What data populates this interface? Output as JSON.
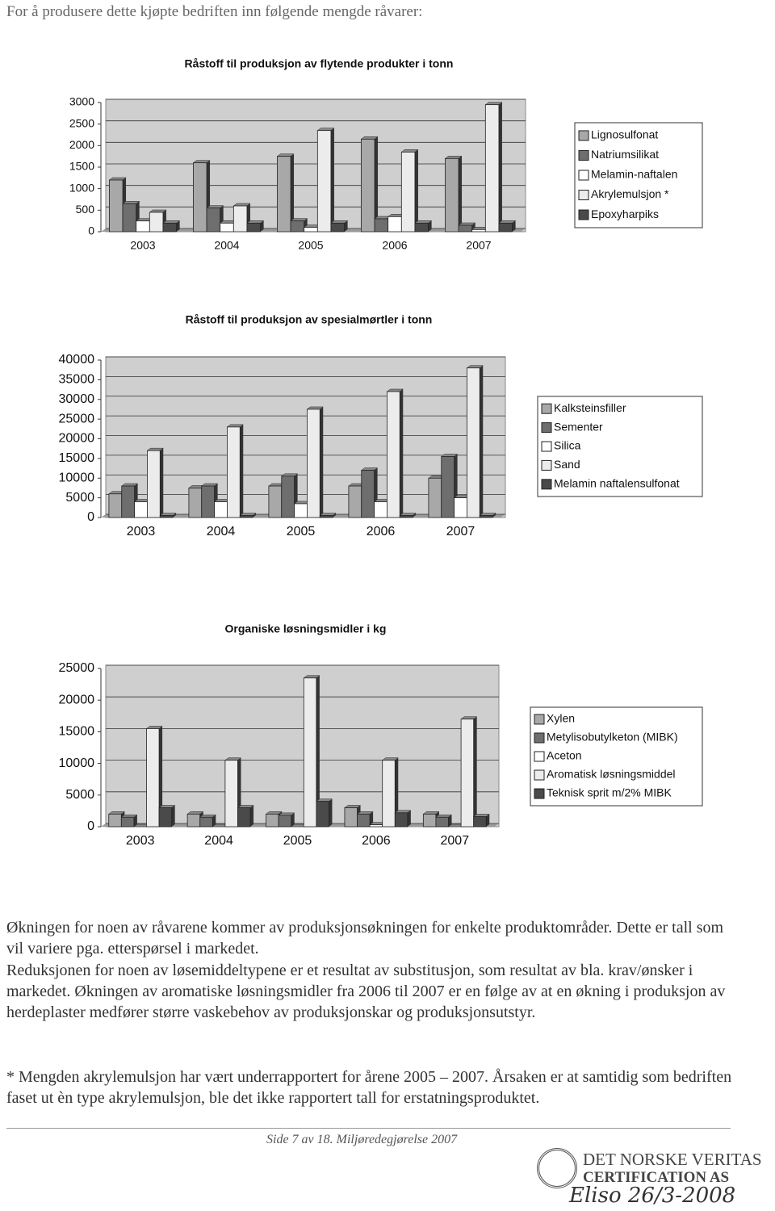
{
  "intro": "For å produsere dette kjøpte bedriften inn følgende mengde råvarer:",
  "chart_data": [
    {
      "type": "bar",
      "title": "Råstoff til produksjon av flytende produkter i tonn",
      "categories": [
        "2003",
        "2004",
        "2005",
        "2006",
        "2007"
      ],
      "series": [
        {
          "name": "Lignosulfonat",
          "color": "#a8a8a8",
          "values": [
            1200,
            1600,
            1750,
            2150,
            1700
          ]
        },
        {
          "name": "Natriumsilikat",
          "color": "#6e6e6e",
          "values": [
            650,
            550,
            250,
            300,
            150
          ]
        },
        {
          "name": "Melamin-naftalen",
          "color": "#ffffff",
          "values": [
            250,
            200,
            100,
            350,
            50
          ]
        },
        {
          "name": "Akrylemulsjon *",
          "color": "#ececec",
          "values": [
            450,
            600,
            2350,
            1850,
            2950
          ]
        },
        {
          "name": "Epoxyharpiks",
          "color": "#4a4a4a",
          "values": [
            200,
            200,
            200,
            200,
            200
          ]
        }
      ],
      "ylim": [
        0,
        3000
      ],
      "yticks": [
        0,
        500,
        1000,
        1500,
        2000,
        2500,
        3000
      ],
      "grid": true,
      "legend": "right"
    },
    {
      "type": "bar",
      "title": "Råstoff til produksjon av spesialmørtler i tonn",
      "categories": [
        "2003",
        "2004",
        "2005",
        "2006",
        "2007"
      ],
      "series": [
        {
          "name": "Kalksteinsfiller",
          "color": "#a8a8a8",
          "values": [
            6000,
            7500,
            8000,
            8000,
            10000
          ]
        },
        {
          "name": "Sementer",
          "color": "#6e6e6e",
          "values": [
            8000,
            8000,
            10500,
            12000,
            15500
          ]
        },
        {
          "name": "Silica",
          "color": "#ffffff",
          "values": [
            4000,
            4000,
            3500,
            4000,
            5000
          ]
        },
        {
          "name": "Sand",
          "color": "#ececec",
          "values": [
            17000,
            23000,
            27500,
            32000,
            38000
          ]
        },
        {
          "name": "Melamin naftalensulfonat",
          "color": "#4a4a4a",
          "values": [
            500,
            500,
            500,
            500,
            500
          ]
        }
      ],
      "ylim": [
        0,
        40000
      ],
      "yticks": [
        0,
        5000,
        10000,
        15000,
        20000,
        25000,
        30000,
        35000,
        40000
      ],
      "grid": true,
      "legend": "right"
    },
    {
      "type": "bar",
      "title": "Organiske løsningsmidler i kg",
      "categories": [
        "2003",
        "2004",
        "2005",
        "2006",
        "2007"
      ],
      "series": [
        {
          "name": "Xylen",
          "color": "#a8a8a8",
          "values": [
            2000,
            2000,
            2000,
            3000,
            2000
          ]
        },
        {
          "name": "Metylisobutylketon (MIBK)",
          "color": "#6e6e6e",
          "values": [
            1500,
            1500,
            1800,
            2000,
            1500
          ]
        },
        {
          "name": "Aceton",
          "color": "#ffffff",
          "values": [
            0,
            0,
            0,
            300,
            0
          ]
        },
        {
          "name": "Aromatisk løsningsmiddel",
          "color": "#ececec",
          "values": [
            15500,
            10500,
            23500,
            10500,
            17000
          ]
        },
        {
          "name": "Teknisk sprit m/2% MIBK",
          "color": "#4a4a4a",
          "values": [
            3000,
            3000,
            4000,
            2200,
            1600
          ]
        }
      ],
      "ylim": [
        0,
        25000
      ],
      "yticks": [
        0,
        5000,
        10000,
        15000,
        20000,
        25000
      ],
      "grid": true,
      "legend": "right"
    }
  ],
  "paragraphs": [
    "Økningen for noen av råvarene kommer av produksjonsøkningen for enkelte produktområder. Dette er tall som vil variere pga. etterspørsel i markedet.",
    "Reduksjonen for noen av løsemiddeltypene er et resultat av substitusjon, som resultat av bla. krav/ønsker i markedet. Økningen av aromatiske løsningsmidler fra 2006 til 2007 er en følge av at en økning i produksjon av herdeplaster medfører større vaskebehov av produksjonskar og produksjonsutstyr.",
    "* Mengden akrylemulsjon har vært underrapportert for årene 2005 – 2007. Årsaken er at samtidig som bedriften faset ut èn type akrylemulsjon, ble det ikke rapportert tall for erstatningsproduktet."
  ],
  "footer": "Side 7 av 18. Miljøredegjørelse 2007",
  "stamp": [
    "DET NORSKE VERITAS",
    "CERTIFICATION AS",
    "Eliso 26/3-2008"
  ]
}
